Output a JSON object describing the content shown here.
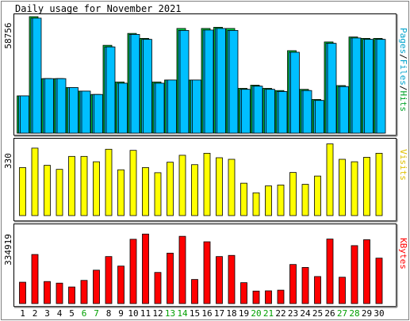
{
  "chart_data": {
    "type": "bar",
    "title": "Daily usage for November 2021",
    "categories": [
      "1",
      "2",
      "3",
      "4",
      "5",
      "6",
      "7",
      "8",
      "9",
      "10",
      "11",
      "12",
      "13",
      "14",
      "15",
      "16",
      "17",
      "18",
      "19",
      "20",
      "21",
      "22",
      "23",
      "24",
      "25",
      "26",
      "27",
      "28",
      "29",
      "30"
    ],
    "weekend_categories": [
      "6",
      "7",
      "13",
      "14",
      "20",
      "21",
      "27",
      "28"
    ],
    "panels": [
      {
        "name": "hits-files-pages",
        "max_label": "58756",
        "ylim": [
          0,
          58756
        ],
        "right_label": [
          {
            "text": "Pages",
            "color": "#00a3cc"
          },
          {
            "text": "/",
            "color": "#000000"
          },
          {
            "text": "Files",
            "color": "#00a3cc"
          },
          {
            "text": "/",
            "color": "#000000"
          },
          {
            "text": "Hits",
            "color": "#00a328"
          }
        ],
        "series": [
          {
            "name": "Hits",
            "color": "#00c040",
            "values": [
              18800,
              58756,
              27500,
              27500,
              23000,
              21200,
              19500,
              44300,
              25800,
              50300,
              47800,
              25800,
              26800,
              52800,
              26800,
              52800,
              53400,
              52800,
              22600,
              24200,
              22600,
              21500,
              41600,
              22100,
              17000,
              46000,
              24000,
              48500,
              47800,
              47800
            ]
          },
          {
            "name": "Files",
            "color": "#00bfff",
            "values": [
              18800,
              58000,
              27500,
              27500,
              23000,
              21200,
              19500,
              43500,
              25200,
              49800,
              47300,
              25200,
              26800,
              51800,
              26800,
              52000,
              52800,
              51800,
              22100,
              23700,
              22100,
              21000,
              40800,
              21500,
              16500,
              45300,
              23500,
              48000,
              47300,
              47300
            ]
          },
          {
            "name": "Pages",
            "color": "#00bfff",
            "values": [
              18800,
              58000,
              27500,
              27500,
              23000,
              21200,
              19500,
              43500,
              25200,
              49800,
              47300,
              25200,
              26800,
              51800,
              26800,
              52000,
              52800,
              51800,
              22100,
              23700,
              22100,
              21000,
              40800,
              21500,
              16500,
              45300,
              23500,
              48000,
              47300,
              47300
            ]
          }
        ]
      },
      {
        "name": "visits",
        "max_label": "330",
        "ylim": [
          0,
          330
        ],
        "right_label": [
          {
            "text": "Visits",
            "color": "#e0c000"
          }
        ],
        "series": [
          {
            "name": "Visits",
            "color": "#ffff00",
            "values": [
              215,
              302,
              225,
              207,
              265,
              265,
              241,
              297,
              205,
              292,
              215,
              192,
              239,
              270,
              228,
              279,
              259,
              252,
              145,
              102,
              133,
              137,
              193,
              140,
              177,
              321,
              252,
              241,
              261,
              279
            ]
          }
        ]
      },
      {
        "name": "kbytes",
        "max_label": "334919",
        "ylim": [
          0,
          334919
        ],
        "right_label": [
          {
            "text": "KBytes",
            "color": "#ff0000"
          }
        ],
        "series": [
          {
            "name": "KBytes",
            "color": "#ff0000",
            "values": [
              94000,
              216000,
              97000,
              90000,
              73000,
              102000,
              147000,
              207000,
              165000,
              283000,
              306000,
              137000,
              222000,
              296000,
              106000,
              272000,
              207000,
              212000,
              92000,
              55000,
              56000,
              59000,
              172000,
              159000,
              119000,
              284000,
              116000,
              255000,
              281000,
              200000
            ]
          }
        ]
      }
    ]
  }
}
